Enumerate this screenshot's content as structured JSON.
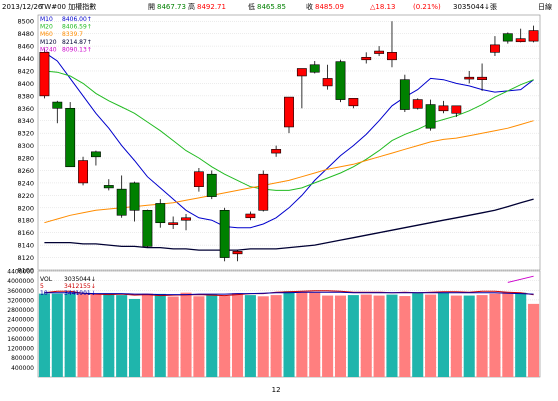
{
  "header": {
    "date": "2013/12/26",
    "symbol": "TW#00 加權指數",
    "open_label": "開",
    "open": "8467.73",
    "high_label": "高",
    "high": "8492.71",
    "low_label": "低",
    "low": "8465.85",
    "close_label": "收",
    "close": "8485.09",
    "change": "△18.13",
    "change_pct": "(0.21%)",
    "volume": "3035044↓張",
    "period": "日線"
  },
  "colors": {
    "up": "#ff7f7f",
    "down": "#1fb5ac",
    "candle_up_fill": "#ff0000",
    "candle_down_fill": "#008000",
    "ma10": "#0000cc",
    "ma20": "#22bb22",
    "ma60": "#ff8c00",
    "ma120": "#000033",
    "ma240": "#cc00cc",
    "vol5": "#cc0000",
    "vol10": "#0000aa"
  },
  "chart_data": [
    {
      "type": "candlestick",
      "title": "TW#00 加權指數",
      "ylim": [
        8100,
        8510
      ],
      "yticks": [
        8100,
        8120,
        8140,
        8160,
        8180,
        8200,
        8220,
        8240,
        8260,
        8280,
        8300,
        8320,
        8340,
        8360,
        8380,
        8400,
        8420,
        8440,
        8460,
        8480,
        8500
      ],
      "xlabel_ticks": [
        {
          "index": 18,
          "label": "12"
        }
      ],
      "legend": [
        {
          "name": "M10",
          "value": "8406.00↑",
          "key": "ma10"
        },
        {
          "name": "M20",
          "value": "8406.59↑",
          "key": "ma20"
        },
        {
          "name": "M60",
          "value": "8339.7",
          "key": "ma60"
        },
        {
          "name": "M120",
          "value": "8214.87↑",
          "key": "ma120"
        },
        {
          "name": "M240",
          "value": "8090.13↑",
          "key": "ma240"
        }
      ],
      "candles": [
        {
          "o": 8380,
          "h": 8456,
          "l": 8376,
          "c": 8450
        },
        {
          "o": 8370,
          "h": 8372,
          "l": 8336,
          "c": 8360
        },
        {
          "o": 8360,
          "h": 8370,
          "l": 8268,
          "c": 8266
        },
        {
          "o": 8240,
          "h": 8282,
          "l": 8236,
          "c": 8276
        },
        {
          "o": 8290,
          "h": 8292,
          "l": 8268,
          "c": 8282
        },
        {
          "o": 8236,
          "h": 8246,
          "l": 8228,
          "c": 8232
        },
        {
          "o": 8230,
          "h": 8252,
          "l": 8184,
          "c": 8188
        },
        {
          "o": 8240,
          "h": 8242,
          "l": 8178,
          "c": 8196
        },
        {
          "o": 8196,
          "h": 8197,
          "l": 8136,
          "c": 8138
        },
        {
          "o": 8207,
          "h": 8214,
          "l": 8168,
          "c": 8176
        },
        {
          "o": 8173,
          "h": 8186,
          "l": 8166,
          "c": 8176
        },
        {
          "o": 8180,
          "h": 8190,
          "l": 8164,
          "c": 8184
        },
        {
          "o": 8234,
          "h": 8264,
          "l": 8226,
          "c": 8258
        },
        {
          "o": 8254,
          "h": 8260,
          "l": 8214,
          "c": 8218
        },
        {
          "o": 8196,
          "h": 8200,
          "l": 8114,
          "c": 8120
        },
        {
          "o": 8126,
          "h": 8132,
          "l": 8114,
          "c": 8130
        },
        {
          "o": 8184,
          "h": 8194,
          "l": 8180,
          "c": 8190
        },
        {
          "o": 8196,
          "h": 8260,
          "l": 8194,
          "c": 8254
        },
        {
          "o": 8288,
          "h": 8300,
          "l": 8282,
          "c": 8294
        },
        {
          "o": 8330,
          "h": 8374,
          "l": 8320,
          "c": 8378
        },
        {
          "o": 8412,
          "h": 8424,
          "l": 8360,
          "c": 8424
        },
        {
          "o": 8430,
          "h": 8436,
          "l": 8416,
          "c": 8418
        },
        {
          "o": 8396,
          "h": 8430,
          "l": 8390,
          "c": 8408
        },
        {
          "o": 8435,
          "h": 8438,
          "l": 8370,
          "c": 8374
        },
        {
          "o": 8364,
          "h": 8375,
          "l": 8360,
          "c": 8376
        },
        {
          "o": 8438,
          "h": 8450,
          "l": 8432,
          "c": 8442
        },
        {
          "o": 8448,
          "h": 8460,
          "l": 8444,
          "c": 8452
        },
        {
          "o": 8438,
          "h": 8500,
          "l": 8426,
          "c": 8450
        },
        {
          "o": 8406,
          "h": 8414,
          "l": 8354,
          "c": 8358
        },
        {
          "o": 8360,
          "h": 8376,
          "l": 8358,
          "c": 8374
        },
        {
          "o": 8366,
          "h": 8374,
          "l": 8324,
          "c": 8328
        },
        {
          "o": 8356,
          "h": 8372,
          "l": 8352,
          "c": 8364
        },
        {
          "o": 8352,
          "h": 8362,
          "l": 8346,
          "c": 8364
        },
        {
          "o": 8407,
          "h": 8420,
          "l": 8400,
          "c": 8410
        },
        {
          "o": 8406,
          "h": 8432,
          "l": 8388,
          "c": 8410
        },
        {
          "o": 8450,
          "h": 8476,
          "l": 8444,
          "c": 8462
        },
        {
          "o": 8480,
          "h": 8482,
          "l": 8464,
          "c": 8468
        },
        {
          "o": 8467,
          "h": 8488,
          "l": 8466,
          "c": 8472
        },
        {
          "o": 8468,
          "h": 8493,
          "l": 8466,
          "c": 8485
        }
      ],
      "series": [
        {
          "name": "M10",
          "key": "ma10",
          "values": [
            8450,
            8436,
            8408,
            8380,
            8352,
            8328,
            8300,
            8276,
            8250,
            8232,
            8214,
            8196,
            8184,
            8180,
            8170,
            8168,
            8168,
            8174,
            8184,
            8200,
            8220,
            8244,
            8264,
            8284,
            8300,
            8318,
            8340,
            8364,
            8378,
            8390,
            8408,
            8406,
            8400,
            8396,
            8390,
            8386,
            8388,
            8390,
            8406
          ]
        },
        {
          "name": "M20",
          "key": "ma20",
          "values": [
            8420,
            8418,
            8412,
            8400,
            8384,
            8372,
            8362,
            8352,
            8338,
            8324,
            8308,
            8292,
            8280,
            8266,
            8254,
            8244,
            8234,
            8230,
            8228,
            8228,
            8232,
            8240,
            8248,
            8256,
            8266,
            8278,
            8292,
            8308,
            8318,
            8326,
            8336,
            8342,
            8348,
            8356,
            8366,
            8378,
            8388,
            8398,
            8406
          ]
        },
        {
          "name": "M60",
          "key": "ma60",
          "values": [
            8176,
            8182,
            8188,
            8192,
            8196,
            8198,
            8200,
            8202,
            8204,
            8206,
            8208,
            8212,
            8216,
            8220,
            8224,
            8228,
            8232,
            8236,
            8240,
            8244,
            8250,
            8256,
            8262,
            8266,
            8270,
            8276,
            8282,
            8288,
            8294,
            8300,
            8306,
            8310,
            8312,
            8316,
            8320,
            8324,
            8328,
            8334,
            8340
          ]
        },
        {
          "name": "M120",
          "key": "ma120",
          "values": [
            8144,
            8144,
            8144,
            8142,
            8142,
            8140,
            8138,
            8138,
            8136,
            8136,
            8134,
            8134,
            8132,
            8132,
            8132,
            8132,
            8134,
            8134,
            8134,
            8136,
            8138,
            8140,
            8144,
            8148,
            8152,
            8156,
            8160,
            8164,
            8168,
            8172,
            8176,
            8180,
            8184,
            8188,
            8192,
            8196,
            8202,
            8208,
            8214
          ]
        },
        {
          "name": "M240",
          "key": "ma240",
          "values": [
            null,
            null,
            null,
            null,
            null,
            null,
            null,
            null,
            null,
            null,
            null,
            null,
            null,
            null,
            null,
            null,
            null,
            null,
            null,
            null,
            null,
            null,
            null,
            null,
            null,
            null,
            null,
            null,
            null,
            null,
            null,
            null,
            null,
            null,
            null,
            null,
            8080,
            8085,
            8090
          ]
        }
      ]
    },
    {
      "type": "bar",
      "title": "VOL",
      "ylim": [
        0,
        4400000
      ],
      "yticks": [
        400000,
        800000,
        1200000,
        1600000,
        2000000,
        2400000,
        2800000,
        3200000,
        3600000,
        4000000,
        4400000
      ],
      "ytick_labels": [
        "400000",
        "800000",
        "1200000",
        "1600000",
        "2000000",
        "2400000",
        "2800000",
        "3200000",
        "3600000",
        "4000000",
        "4400000"
      ],
      "legend": [
        {
          "name": "VOL",
          "value": "3035044↓",
          "key": "vol"
        },
        {
          "name": "5",
          "value": "3412155↓",
          "key": "vol5"
        },
        {
          "name": "10",
          "value": "3441901↓",
          "key": "vol10"
        }
      ],
      "values": [
        3460000,
        3460000,
        3460000,
        3460000,
        3460000,
        3450000,
        3400000,
        3240000,
        3460000,
        3450000,
        3340000,
        3500000,
        3350000,
        3420000,
        3360000,
        3480000,
        3400000,
        3350000,
        3400000,
        3560000,
        3520000,
        3500000,
        3380000,
        3380000,
        3400000,
        3420000,
        3380000,
        3420000,
        3360000,
        3480000,
        3420000,
        3500000,
        3380000,
        3380000,
        3400000,
        3460000,
        3520000,
        3500000,
        3035044
      ],
      "directions": [
        "down",
        "down",
        "down",
        "up",
        "up",
        "down",
        "down",
        "down",
        "up",
        "down",
        "up",
        "up",
        "up",
        "down",
        "up",
        "up",
        "down",
        "up",
        "up",
        "down",
        "up",
        "up",
        "up",
        "up",
        "down",
        "up",
        "up",
        "down",
        "up",
        "down",
        "up",
        "down",
        "up",
        "down",
        "up",
        "up",
        "up",
        "down",
        "up"
      ],
      "series": [
        {
          "name": "5",
          "key": "vol5",
          "values": [
            3500000,
            3560000,
            3560000,
            3480000,
            3440000,
            3420000,
            3440000,
            3400000,
            3420000,
            3380000,
            3400000,
            3410000,
            3420000,
            3400000,
            3380000,
            3420000,
            3460000,
            3460000,
            3520000,
            3540000,
            3560000,
            3580000,
            3580000,
            3560000,
            3520000,
            3520000,
            3520000,
            3500000,
            3520000,
            3500000,
            3520000,
            3540000,
            3540000,
            3520000,
            3560000,
            3560000,
            3520000,
            3500000,
            3412155
          ]
        },
        {
          "name": "10",
          "key": "vol10",
          "values": [
            3500000,
            3500000,
            3500000,
            3480000,
            3460000,
            3460000,
            3460000,
            3440000,
            3440000,
            3420000,
            3420000,
            3420000,
            3440000,
            3440000,
            3440000,
            3460000,
            3460000,
            3480000,
            3500000,
            3500000,
            3520000,
            3520000,
            3520000,
            3520000,
            3500000,
            3500000,
            3500000,
            3500000,
            3500000,
            3500000,
            3500000,
            3500000,
            3500000,
            3500000,
            3500000,
            3500000,
            3480000,
            3460000,
            3441901
          ]
        }
      ]
    }
  ]
}
